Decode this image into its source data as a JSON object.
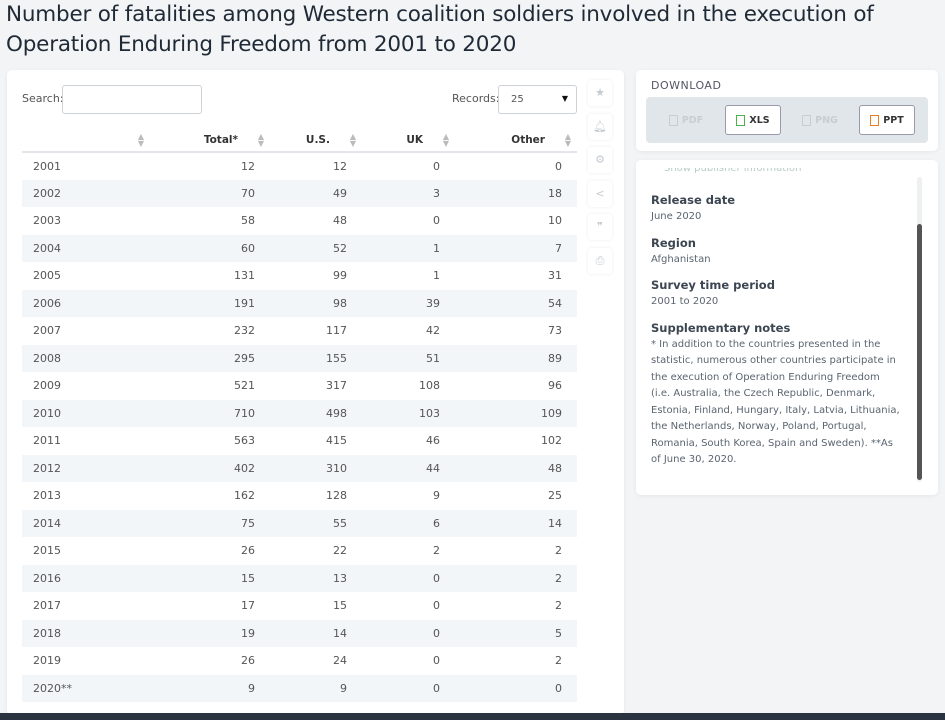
{
  "title": "Number of fatalities among Western coalition soldiers involved in the execution of Operation Enduring Freedom from 2001 to 2020",
  "search": {
    "label": "Search:",
    "value": ""
  },
  "records": {
    "label": "Records:",
    "value": "25"
  },
  "table": {
    "headers": [
      "",
      "Total*",
      "U.S.",
      "UK",
      "Other"
    ],
    "rows": [
      [
        "2001",
        "12",
        "12",
        "0",
        "0"
      ],
      [
        "2002",
        "70",
        "49",
        "3",
        "18"
      ],
      [
        "2003",
        "58",
        "48",
        "0",
        "10"
      ],
      [
        "2004",
        "60",
        "52",
        "1",
        "7"
      ],
      [
        "2005",
        "131",
        "99",
        "1",
        "31"
      ],
      [
        "2006",
        "191",
        "98",
        "39",
        "54"
      ],
      [
        "2007",
        "232",
        "117",
        "42",
        "73"
      ],
      [
        "2008",
        "295",
        "155",
        "51",
        "89"
      ],
      [
        "2009",
        "521",
        "317",
        "108",
        "96"
      ],
      [
        "2010",
        "710",
        "498",
        "103",
        "109"
      ],
      [
        "2011",
        "563",
        "415",
        "46",
        "102"
      ],
      [
        "2012",
        "402",
        "310",
        "44",
        "48"
      ],
      [
        "2013",
        "162",
        "128",
        "9",
        "25"
      ],
      [
        "2014",
        "75",
        "55",
        "6",
        "14"
      ],
      [
        "2015",
        "26",
        "22",
        "2",
        "2"
      ],
      [
        "2016",
        "15",
        "13",
        "0",
        "2"
      ],
      [
        "2017",
        "17",
        "15",
        "0",
        "2"
      ],
      [
        "2018",
        "19",
        "14",
        "0",
        "5"
      ],
      [
        "2019",
        "26",
        "24",
        "0",
        "2"
      ],
      [
        "2020**",
        "9",
        "9",
        "0",
        "0"
      ]
    ]
  },
  "side_icons": [
    "star-icon",
    "bell-icon",
    "gear-icon",
    "share-icon",
    "quote-icon",
    "print-icon"
  ],
  "download": {
    "title": "DOWNLOAD",
    "buttons": [
      {
        "label": "PDF",
        "enabled": false,
        "color": "#c8cdd2"
      },
      {
        "label": "XLS",
        "enabled": true,
        "color": "#4caf50"
      },
      {
        "label": "PNG",
        "enabled": false,
        "color": "#c8cdd2"
      },
      {
        "label": "PPT",
        "enabled": true,
        "color": "#e67e22"
      }
    ]
  },
  "info": {
    "clipped": "Show publisher information",
    "release_label": "Release date",
    "release_value": "June 2020",
    "region_label": "Region",
    "region_value": "Afghanistan",
    "period_label": "Survey time period",
    "period_value": "2001 to 2020",
    "notes_label": "Supplementary notes",
    "notes_value": "* In addition to the countries presented in the statistic, numerous other countries participate in the execution of Operation Enduring Freedom (i.e. Australia, the Czech Republic, Denmark, Estonia, Finland, Hungary, Italy, Latvia, Lithuania, the Netherlands, Norway, Poland, Portugal, Romania, South Korea, Spain and Sweden). **As of June 30, 2020."
  }
}
